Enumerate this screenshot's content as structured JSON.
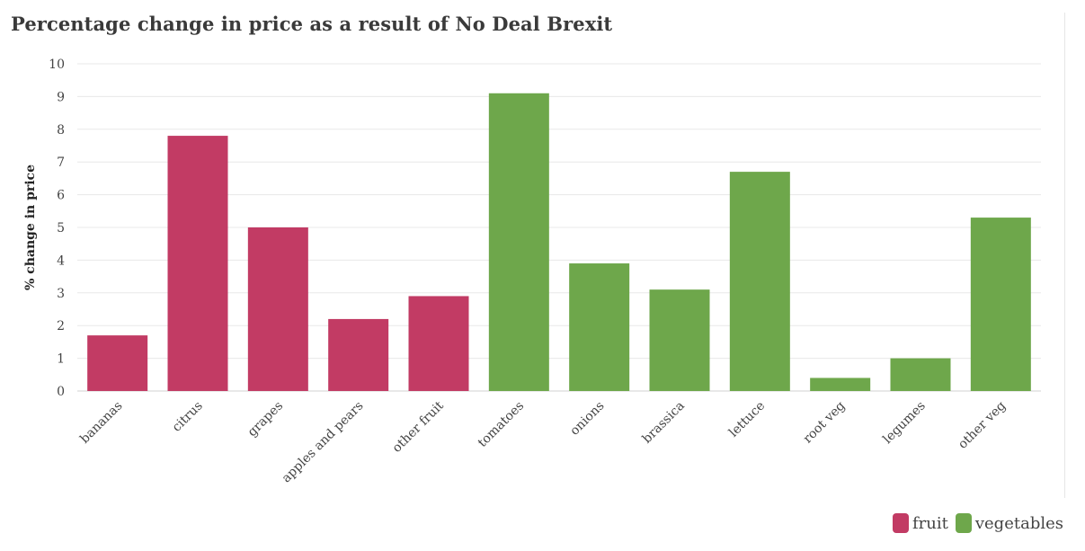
{
  "title": "Percentage change in price as a result of No Deal Brexit",
  "chart_data": {
    "type": "bar",
    "title": "Percentage change in price as a result of No Deal Brexit",
    "ylabel": "% change in price",
    "xlabel": "",
    "ylim": [
      0,
      10
    ],
    "yticks": [
      0,
      1,
      2,
      3,
      4,
      5,
      6,
      7,
      8,
      9,
      10
    ],
    "grid": true,
    "legend_position": "bottom-right",
    "categories": [
      "bananas",
      "citrus",
      "grapes",
      "apples and pears",
      "other fruit",
      "tomatoes",
      "onions",
      "brassica",
      "lettuce",
      "root veg",
      "legumes",
      "other veg"
    ],
    "values": [
      1.7,
      7.8,
      5.0,
      2.2,
      2.9,
      9.1,
      3.9,
      3.1,
      6.7,
      0.4,
      1.0,
      5.3
    ],
    "groups": [
      "fruit",
      "fruit",
      "fruit",
      "fruit",
      "fruit",
      "vegetables",
      "vegetables",
      "vegetables",
      "vegetables",
      "vegetables",
      "vegetables",
      "vegetables"
    ],
    "legend": [
      {
        "name": "fruit",
        "color": "#c23b64"
      },
      {
        "name": "vegetables",
        "color": "#6ea74b"
      }
    ]
  }
}
